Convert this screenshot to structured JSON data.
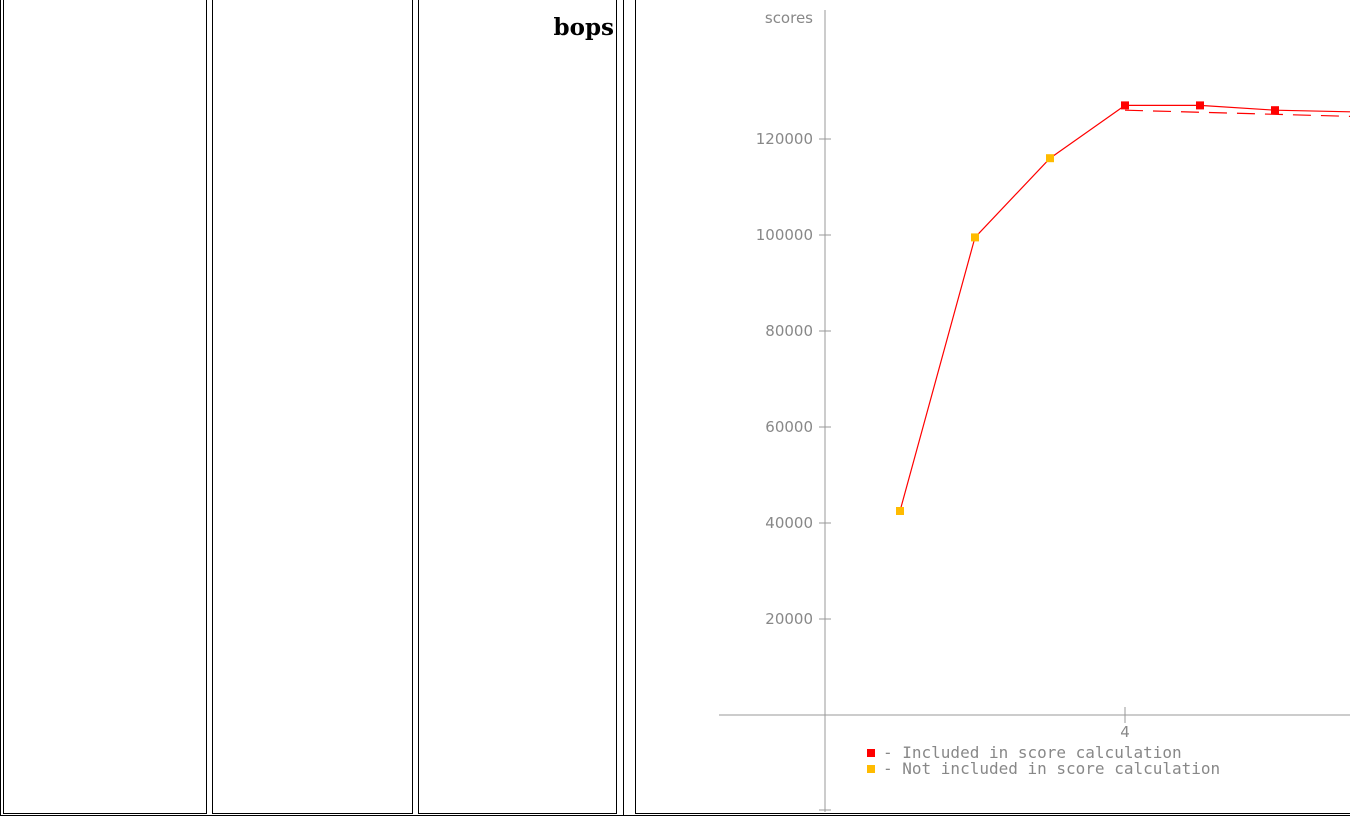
{
  "table": {
    "header_text": "bops"
  },
  "chart_data": {
    "type": "line",
    "ylabel": "scores",
    "yticks": [
      20000,
      40000,
      60000,
      80000,
      100000,
      120000
    ],
    "xticks": [
      4
    ],
    "ylim": [
      -20000,
      144000
    ],
    "xlim": [
      0,
      7.5
    ],
    "grid": false,
    "series": [
      {
        "color": "#ff0000",
        "style": "solid",
        "points": [
          {
            "x": 1,
            "y": 42500,
            "included": false
          },
          {
            "x": 2,
            "y": 99500,
            "included": false
          },
          {
            "x": 3,
            "y": 116000,
            "included": false
          },
          {
            "x": 4,
            "y": 127000,
            "included": true
          },
          {
            "x": 5,
            "y": 127000,
            "included": true
          },
          {
            "x": 6,
            "y": 126000,
            "included": true
          },
          {
            "x": 7.5,
            "y": 125500,
            "included": true
          }
        ]
      },
      {
        "color": "#ff0000",
        "style": "dashed",
        "points": [
          {
            "x": 4,
            "y": 126000
          },
          {
            "x": 7.5,
            "y": 124500
          }
        ]
      }
    ],
    "legend": [
      {
        "label": "- Included in score calculation",
        "color": "#ff0000"
      },
      {
        "label": "- Not included in score calculation",
        "color": "#ffbb00"
      }
    ],
    "legend_position": "bottom-left"
  }
}
